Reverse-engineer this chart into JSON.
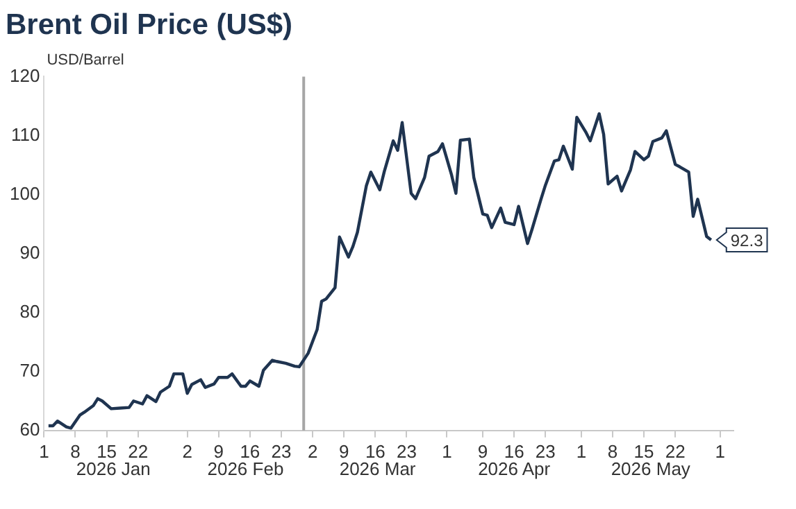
{
  "chart_data": {
    "type": "line",
    "title": "Brent Oil Price (US$)",
    "ylabel": "USD/Barrel",
    "annotations": [
      "2026 Jan",
      "2026 Feb",
      "2026 Mar",
      "2026 Apr",
      "2026 May"
    ],
    "x": [
      "2026-01-02",
      "2026-01-03",
      "2026-01-04",
      "2026-01-06",
      "2026-01-07",
      "2026-01-09",
      "2026-01-10",
      "2026-01-12",
      "2026-01-13",
      "2026-01-14",
      "2026-01-16",
      "2026-01-18",
      "2026-01-20",
      "2026-01-21",
      "2026-01-23",
      "2026-01-24",
      "2026-01-26",
      "2026-01-27",
      "2026-01-29",
      "2026-01-30",
      "2026-02-01",
      "2026-02-02",
      "2026-02-03",
      "2026-02-05",
      "2026-02-06",
      "2026-02-08",
      "2026-02-09",
      "2026-02-11",
      "2026-02-12",
      "2026-02-14",
      "2026-02-15",
      "2026-02-16",
      "2026-02-18",
      "2026-02-19",
      "2026-02-21",
      "2026-02-22",
      "2026-02-24",
      "2026-02-26",
      "2026-02-27",
      "2026-03-01",
      "2026-03-03",
      "2026-03-04",
      "2026-03-05",
      "2026-03-07",
      "2026-03-08",
      "2026-03-10",
      "2026-03-11",
      "2026-03-12",
      "2026-03-14",
      "2026-03-15",
      "2026-03-17",
      "2026-03-18",
      "2026-03-20",
      "2026-03-21",
      "2026-03-22",
      "2026-03-24",
      "2026-03-25",
      "2026-03-27",
      "2026-03-28",
      "2026-03-30",
      "2026-03-31",
      "2026-04-02",
      "2026-04-03",
      "2026-04-04",
      "2026-04-06",
      "2026-04-07",
      "2026-04-09",
      "2026-04-10",
      "2026-04-11",
      "2026-04-13",
      "2026-04-14",
      "2026-04-16",
      "2026-04-17",
      "2026-04-19",
      "2026-04-20",
      "2026-04-22",
      "2026-04-23",
      "2026-04-25",
      "2026-04-26",
      "2026-04-27",
      "2026-04-29",
      "2026-04-30",
      "2026-05-02",
      "2026-05-03",
      "2026-05-05",
      "2026-05-06",
      "2026-05-07",
      "2026-05-09",
      "2026-05-10",
      "2026-05-12",
      "2026-05-13",
      "2026-05-15",
      "2026-05-16",
      "2026-05-17",
      "2026-05-19",
      "2026-05-20",
      "2026-05-22",
      "2026-05-23",
      "2026-05-25",
      "2026-05-26",
      "2026-05-27",
      "2026-05-29",
      "2026-05-30"
    ],
    "series": [
      {
        "color": "#1f3450",
        "values": [
          60.8,
          60.8,
          61.6,
          60.6,
          60.4,
          62.6,
          63.1,
          64.2,
          65.4,
          65.0,
          63.7,
          63.8,
          63.9,
          65.0,
          64.5,
          65.9,
          64.9,
          66.5,
          67.5,
          69.6,
          69.6,
          66.3,
          67.8,
          68.6,
          67.3,
          67.9,
          69.0,
          69.0,
          69.6,
          67.5,
          67.5,
          68.4,
          67.5,
          70.2,
          71.9,
          71.7,
          71.4,
          70.9,
          70.8,
          73.1,
          77.1,
          81.9,
          82.3,
          84.2,
          92.8,
          89.4,
          91.2,
          93.6,
          101.5,
          103.8,
          100.8,
          103.9,
          109.1,
          107.5,
          112.2,
          100.2,
          99.3,
          102.9,
          106.5,
          107.3,
          108.6,
          103.4,
          100.2,
          109.2,
          109.4,
          102.9,
          96.7,
          96.5,
          94.4,
          97.7,
          95.3,
          94.9,
          98.0,
          91.7,
          94.1,
          99.2,
          101.6,
          105.7,
          105.9,
          108.2,
          104.3,
          113.1,
          110.6,
          109.1,
          113.7,
          110.2,
          101.8,
          103.1,
          100.6,
          104.2,
          107.3,
          105.9,
          106.5,
          109.0,
          109.6,
          110.8,
          105.1,
          104.7,
          103.8,
          96.3,
          99.2,
          92.9,
          92.3
        ],
        "value_labels": [
          null,
          null,
          null,
          null,
          null,
          null,
          null,
          null,
          null,
          null,
          null,
          null,
          null,
          null,
          null,
          null,
          null,
          null,
          null,
          null,
          null,
          null,
          null,
          null,
          null,
          null,
          null,
          null,
          null,
          null,
          null,
          null,
          null,
          null,
          null,
          null,
          null,
          null,
          null,
          null,
          null,
          null,
          null,
          null,
          null,
          null,
          null,
          null,
          null,
          null,
          null,
          null,
          null,
          null,
          null,
          null,
          null,
          null,
          null,
          null,
          null,
          null,
          null,
          null,
          null,
          null,
          null,
          null,
          null,
          null,
          null,
          null,
          null,
          null,
          null,
          null,
          null,
          null,
          null,
          null,
          null,
          null,
          null,
          null,
          null,
          null,
          null,
          null,
          null,
          null,
          null,
          null,
          null,
          null,
          null,
          null,
          null,
          null,
          null,
          null,
          null,
          null,
          "92.3"
        ]
      }
    ],
    "xlim": [
      "2026-01-01",
      "2026-06-04"
    ],
    "xticks": [
      {
        "value": "2026-01-01",
        "label": "1"
      },
      {
        "value": "2026-01-08",
        "label": "8"
      },
      {
        "value": "2026-01-15",
        "label": "15"
      },
      {
        "value": "2026-01-22",
        "label": "22"
      },
      {
        "value": "2026-02-02",
        "label": "2"
      },
      {
        "value": "2026-02-09",
        "label": "9"
      },
      {
        "value": "2026-02-16",
        "label": "16"
      },
      {
        "value": "2026-02-23",
        "label": "23"
      },
      {
        "value": "2026-03-02",
        "label": "2"
      },
      {
        "value": "2026-03-09",
        "label": "9"
      },
      {
        "value": "2026-03-16",
        "label": "16"
      },
      {
        "value": "2026-03-23",
        "label": "23"
      },
      {
        "value": "2026-04-01",
        "label": "1"
      },
      {
        "value": "2026-04-09",
        "label": "9"
      },
      {
        "value": "2026-04-16",
        "label": "16"
      },
      {
        "value": "2026-04-23",
        "label": "23"
      },
      {
        "value": "2026-05-01",
        "label": "1"
      },
      {
        "value": "2026-05-08",
        "label": "8"
      },
      {
        "value": "2026-05-15",
        "label": "15"
      },
      {
        "value": "2026-05-22",
        "label": "22"
      },
      {
        "value": "2026-06-01",
        "label": "1"
      }
    ],
    "ylim": [
      60,
      120
    ],
    "yticks": [
      60,
      70,
      80,
      90,
      100,
      110,
      120
    ],
    "ref_lines": [
      {
        "axis": "x",
        "value": "2026-02-28",
        "color": "#a6a6a6"
      }
    ],
    "grid": false,
    "legend": false,
    "marker": "none",
    "line_style": "solid"
  }
}
